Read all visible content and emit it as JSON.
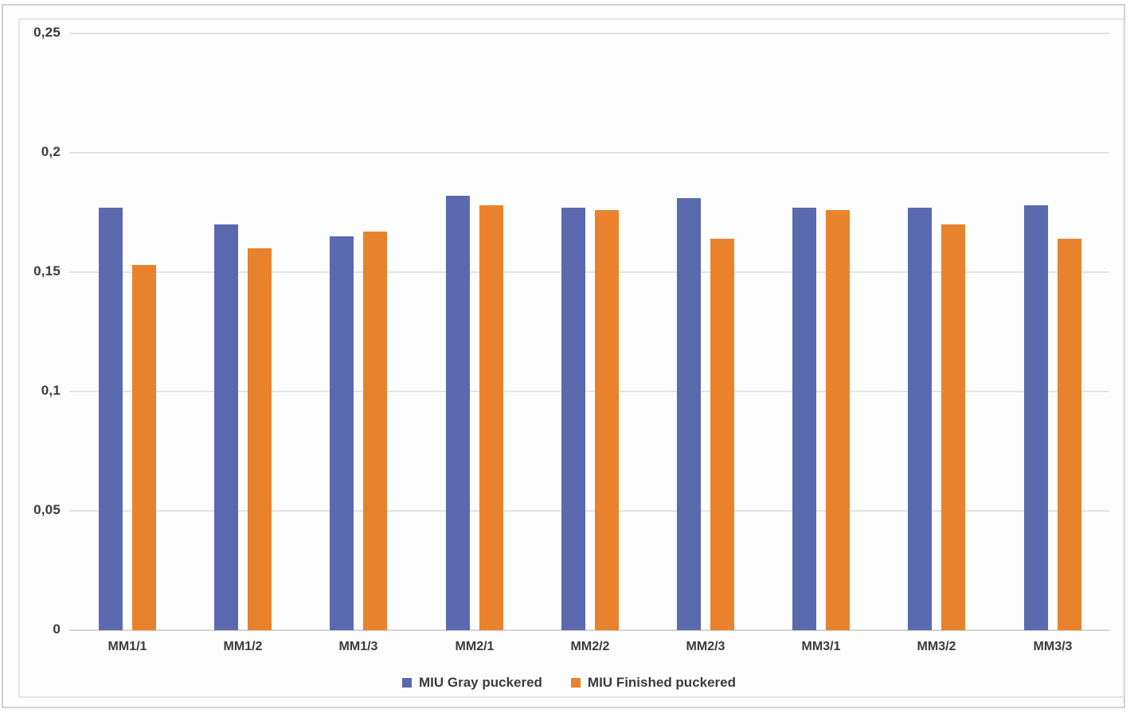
{
  "figure": {
    "background": "#ffffff",
    "outer_border_color": "#d2d0cc",
    "chart_border_color": "#e7e5e1"
  },
  "chart_data": {
    "type": "bar",
    "title": "",
    "xlabel": "",
    "ylabel": "",
    "categories": [
      "MM1/1",
      "MM1/2",
      "MM1/3",
      "MM2/1",
      "MM2/2",
      "MM2/3",
      "MM3/1",
      "MM3/2",
      "MM3/3"
    ],
    "series": [
      {
        "name": "MIU Gray puckered",
        "color": "#5B69AF",
        "values": [
          0.177,
          0.17,
          0.165,
          0.182,
          0.177,
          0.181,
          0.177,
          0.177,
          0.178
        ]
      },
      {
        "name": "MIU Finished puckered",
        "color": "#E8822C",
        "values": [
          0.153,
          0.16,
          0.167,
          0.178,
          0.176,
          0.164,
          0.176,
          0.17,
          0.164
        ]
      }
    ],
    "ylim": [
      0,
      0.25
    ],
    "y_ticks": [
      {
        "value": 0,
        "label": "0"
      },
      {
        "value": 0.05,
        "label": "0,05"
      },
      {
        "value": 0.1,
        "label": "0,1"
      },
      {
        "value": 0.15,
        "label": "0,15"
      },
      {
        "value": 0.2,
        "label": "0,2"
      },
      {
        "value": 0.25,
        "label": "0,25"
      }
    ],
    "decimal_separator": ",",
    "grid": "horizontal",
    "gridline_color": "#e4e4e4",
    "axis_text_color": "#3b3b3b",
    "legend_position": "bottom"
  }
}
